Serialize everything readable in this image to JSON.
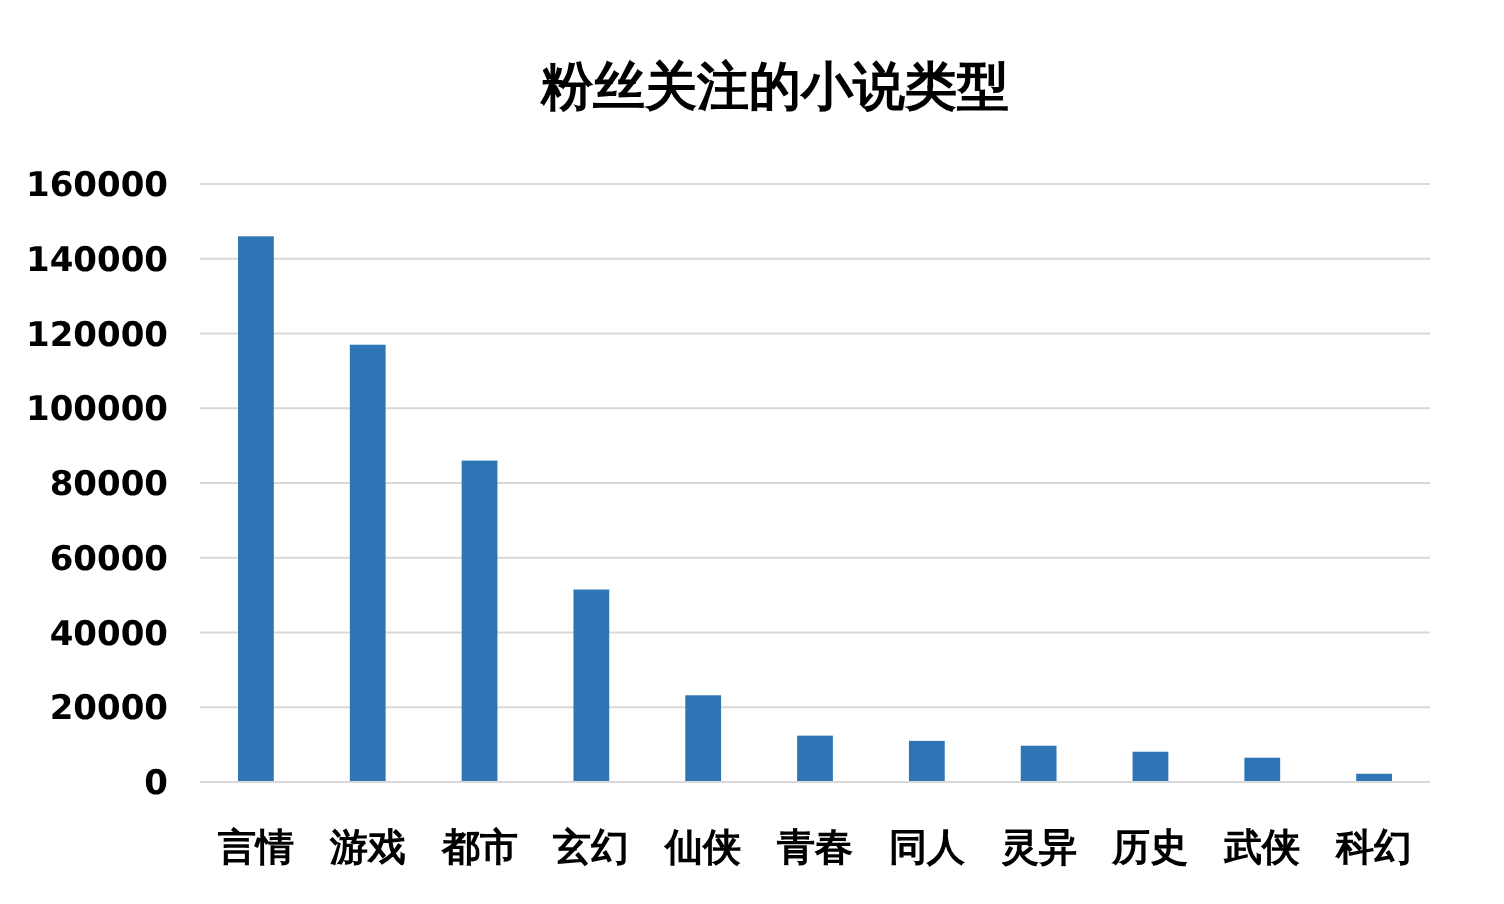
{
  "chart_data": {
    "type": "bar",
    "title": "粉丝关注的小说类型",
    "categories": [
      "言情",
      "游戏",
      "都市",
      "玄幻",
      "仙侠",
      "青春",
      "同人",
      "灵异",
      "历史",
      "武侠",
      "科幻"
    ],
    "values": [
      146000,
      117000,
      86000,
      51500,
      23200,
      12400,
      11000,
      9700,
      8100,
      6500,
      2200
    ],
    "color": "#2e75b6",
    "ylim": [
      0,
      160000
    ],
    "yticks": [
      0,
      20000,
      40000,
      60000,
      80000,
      100000,
      120000,
      140000,
      160000
    ],
    "grid": "y"
  }
}
